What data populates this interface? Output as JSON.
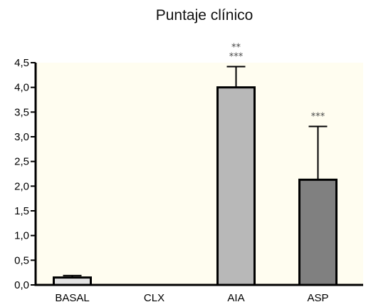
{
  "chart_data": {
    "type": "bar",
    "title": "Puntaje clínico",
    "xlabel": "",
    "ylabel": "",
    "categories": [
      "BASAL",
      "CLX",
      "AIA",
      "ASP"
    ],
    "values": [
      0.15,
      0,
      4.0,
      2.13
    ],
    "errors": [
      0.04,
      0,
      0.42,
      1.08
    ],
    "bar_colors": [
      "#e3e3e3",
      "#d0d0d0",
      "#b8b8b8",
      "#808080"
    ],
    "ylim": [
      0,
      4.5
    ],
    "yticks": [
      "0,0",
      "0,5",
      "1,0",
      "1,5",
      "2,0",
      "2,5",
      "3,0",
      "3,5",
      "4,0",
      "4,5"
    ],
    "yticks_values": [
      0,
      0.5,
      1.0,
      1.5,
      2.0,
      2.5,
      3.0,
      3.5,
      4.0,
      4.5
    ],
    "annotations": [
      {
        "category": "AIA",
        "lines": [
          "**",
          "***"
        ]
      },
      {
        "category": "ASP",
        "lines": [
          "***"
        ]
      }
    ],
    "plot_background": "#fffdf0",
    "grid": false
  }
}
